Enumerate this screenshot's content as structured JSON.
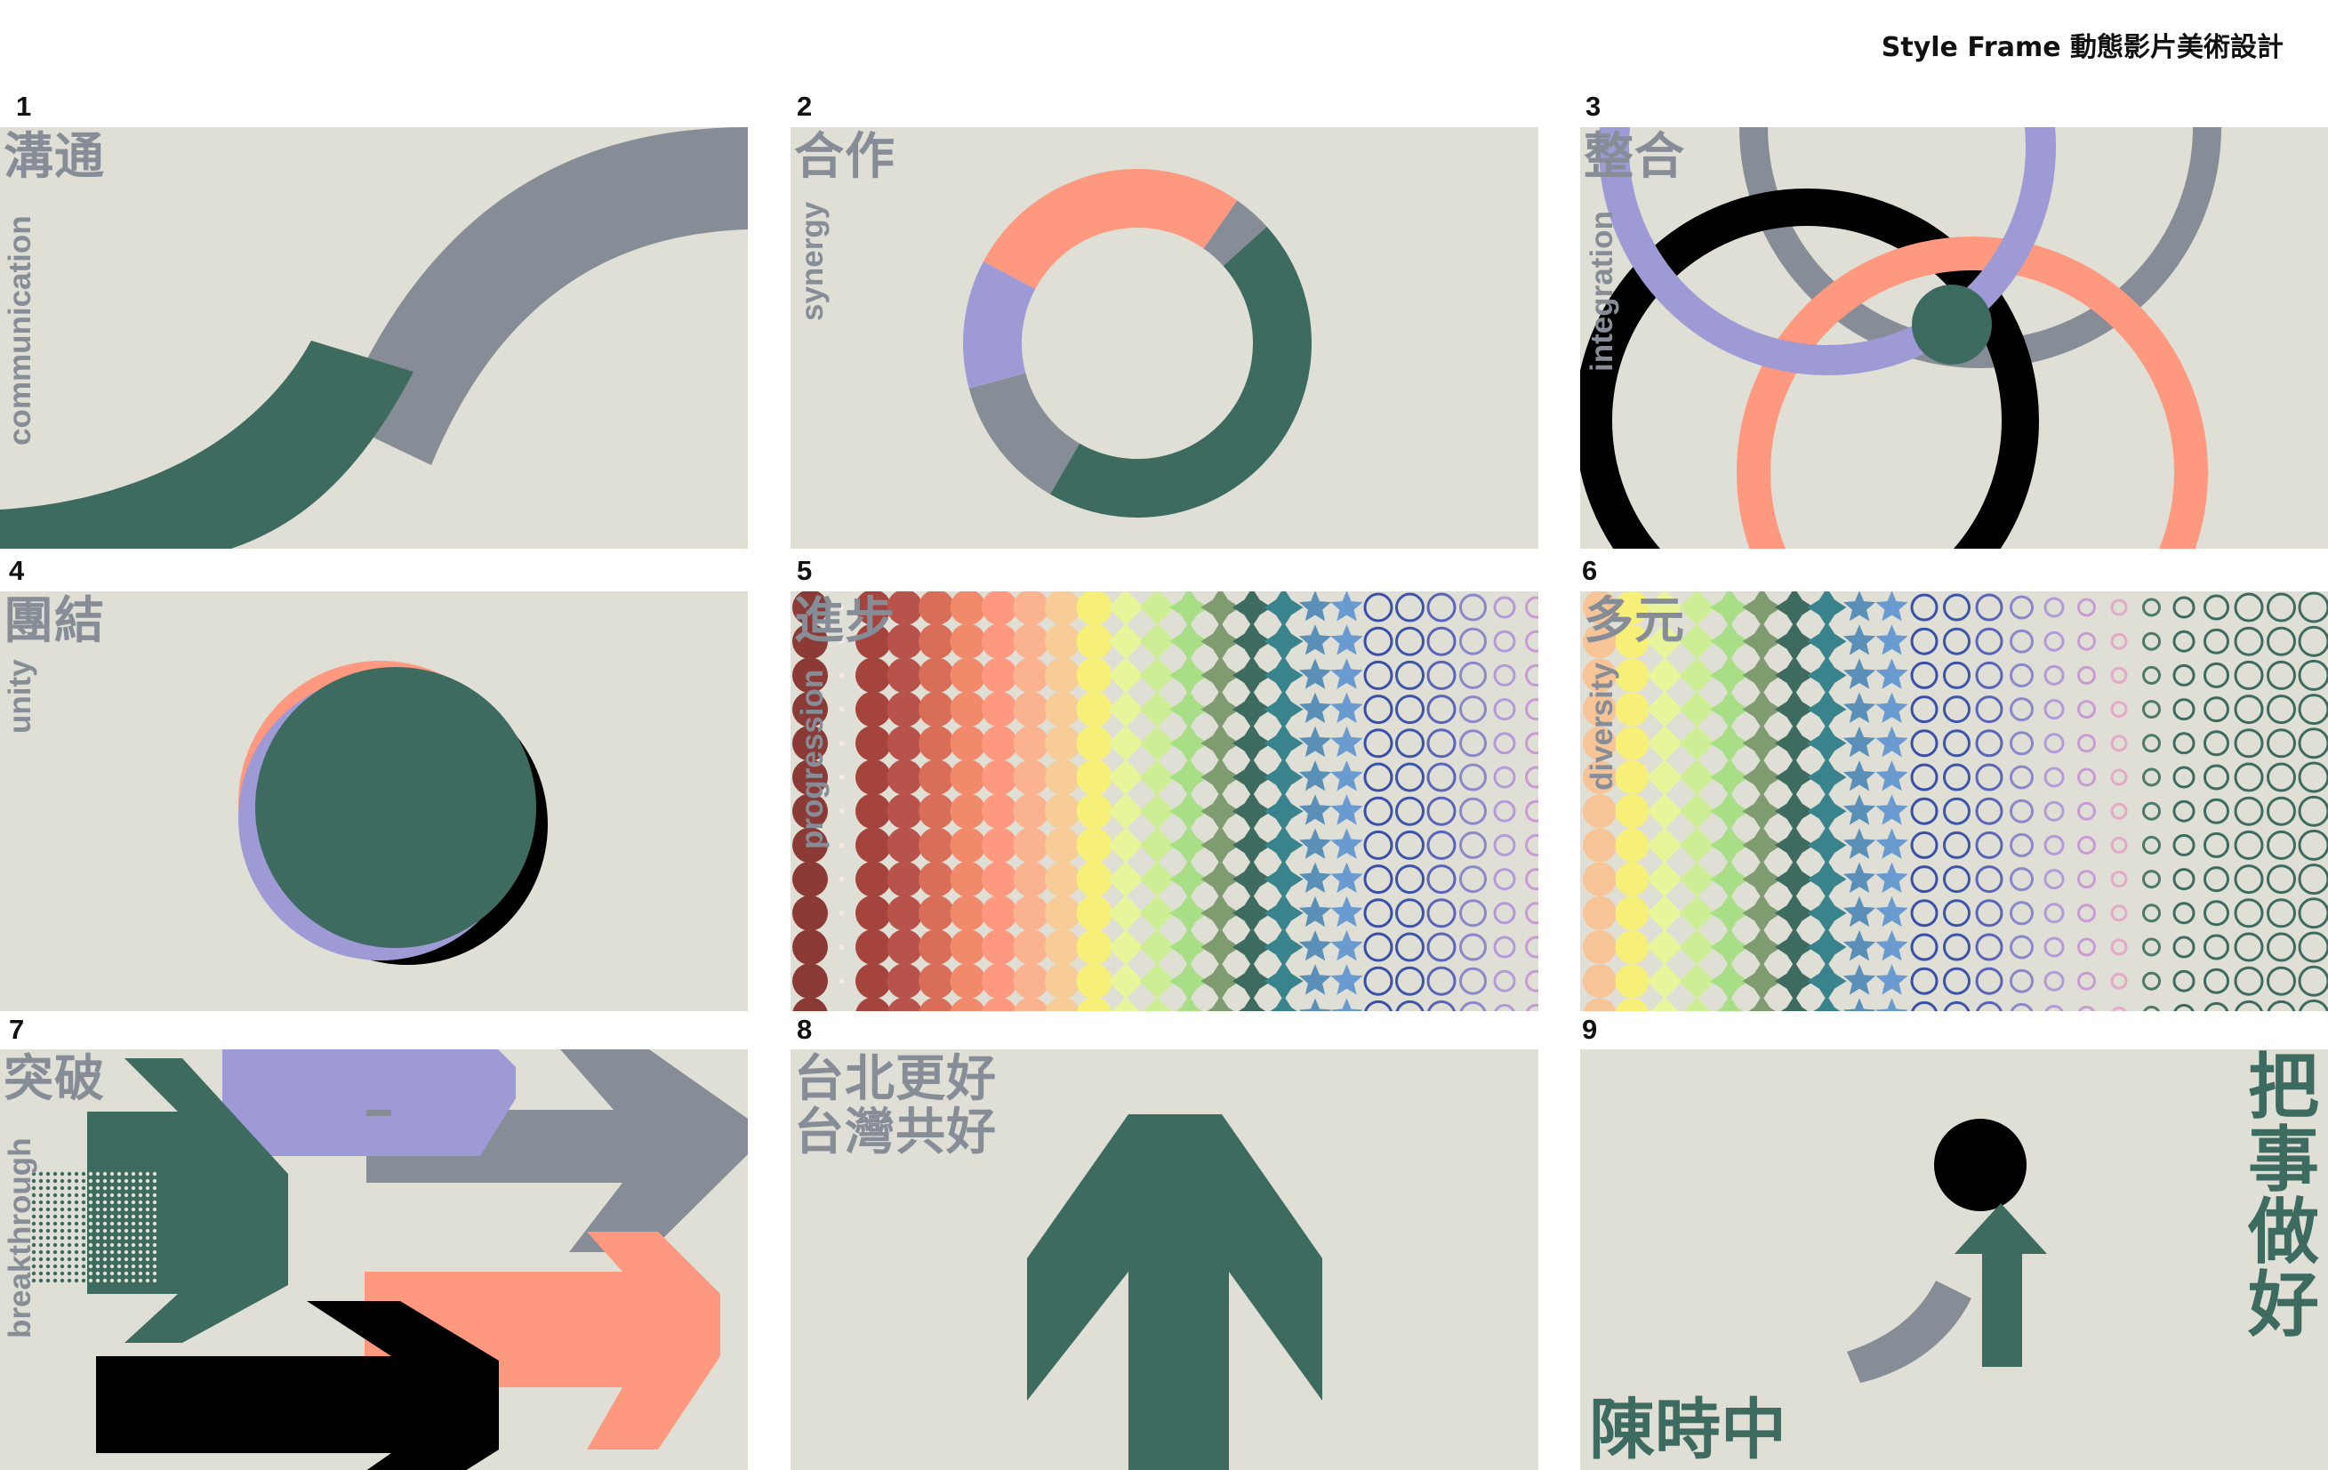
{
  "header": {
    "title": "Style Frame 動態影片美術設計"
  },
  "colors": {
    "bg": "#dfdfd6",
    "green": "#3e6b5f",
    "gray": "#878d96",
    "purple": "#9d9ad6",
    "salmon": "#fe987e",
    "black": "#000000",
    "label": "#878d96"
  },
  "frames": [
    {
      "num": "1",
      "zh": "溝通",
      "en": "communication"
    },
    {
      "num": "2",
      "zh": "合作",
      "en": "synergy"
    },
    {
      "num": "3",
      "zh": "整合",
      "en": "integration"
    },
    {
      "num": "4",
      "zh": "團結",
      "en": "unity"
    },
    {
      "num": "5",
      "zh": "進步",
      "en": "progression"
    },
    {
      "num": "6",
      "zh": "多元",
      "en": "diversity"
    },
    {
      "num": "7",
      "zh": "突破",
      "en": "breakthrough"
    },
    {
      "num": "8",
      "zh_lines": [
        "台北更好",
        "台灣共好"
      ]
    },
    {
      "num": "9",
      "vertical": "把事做好",
      "author": "陳時中"
    }
  ]
}
